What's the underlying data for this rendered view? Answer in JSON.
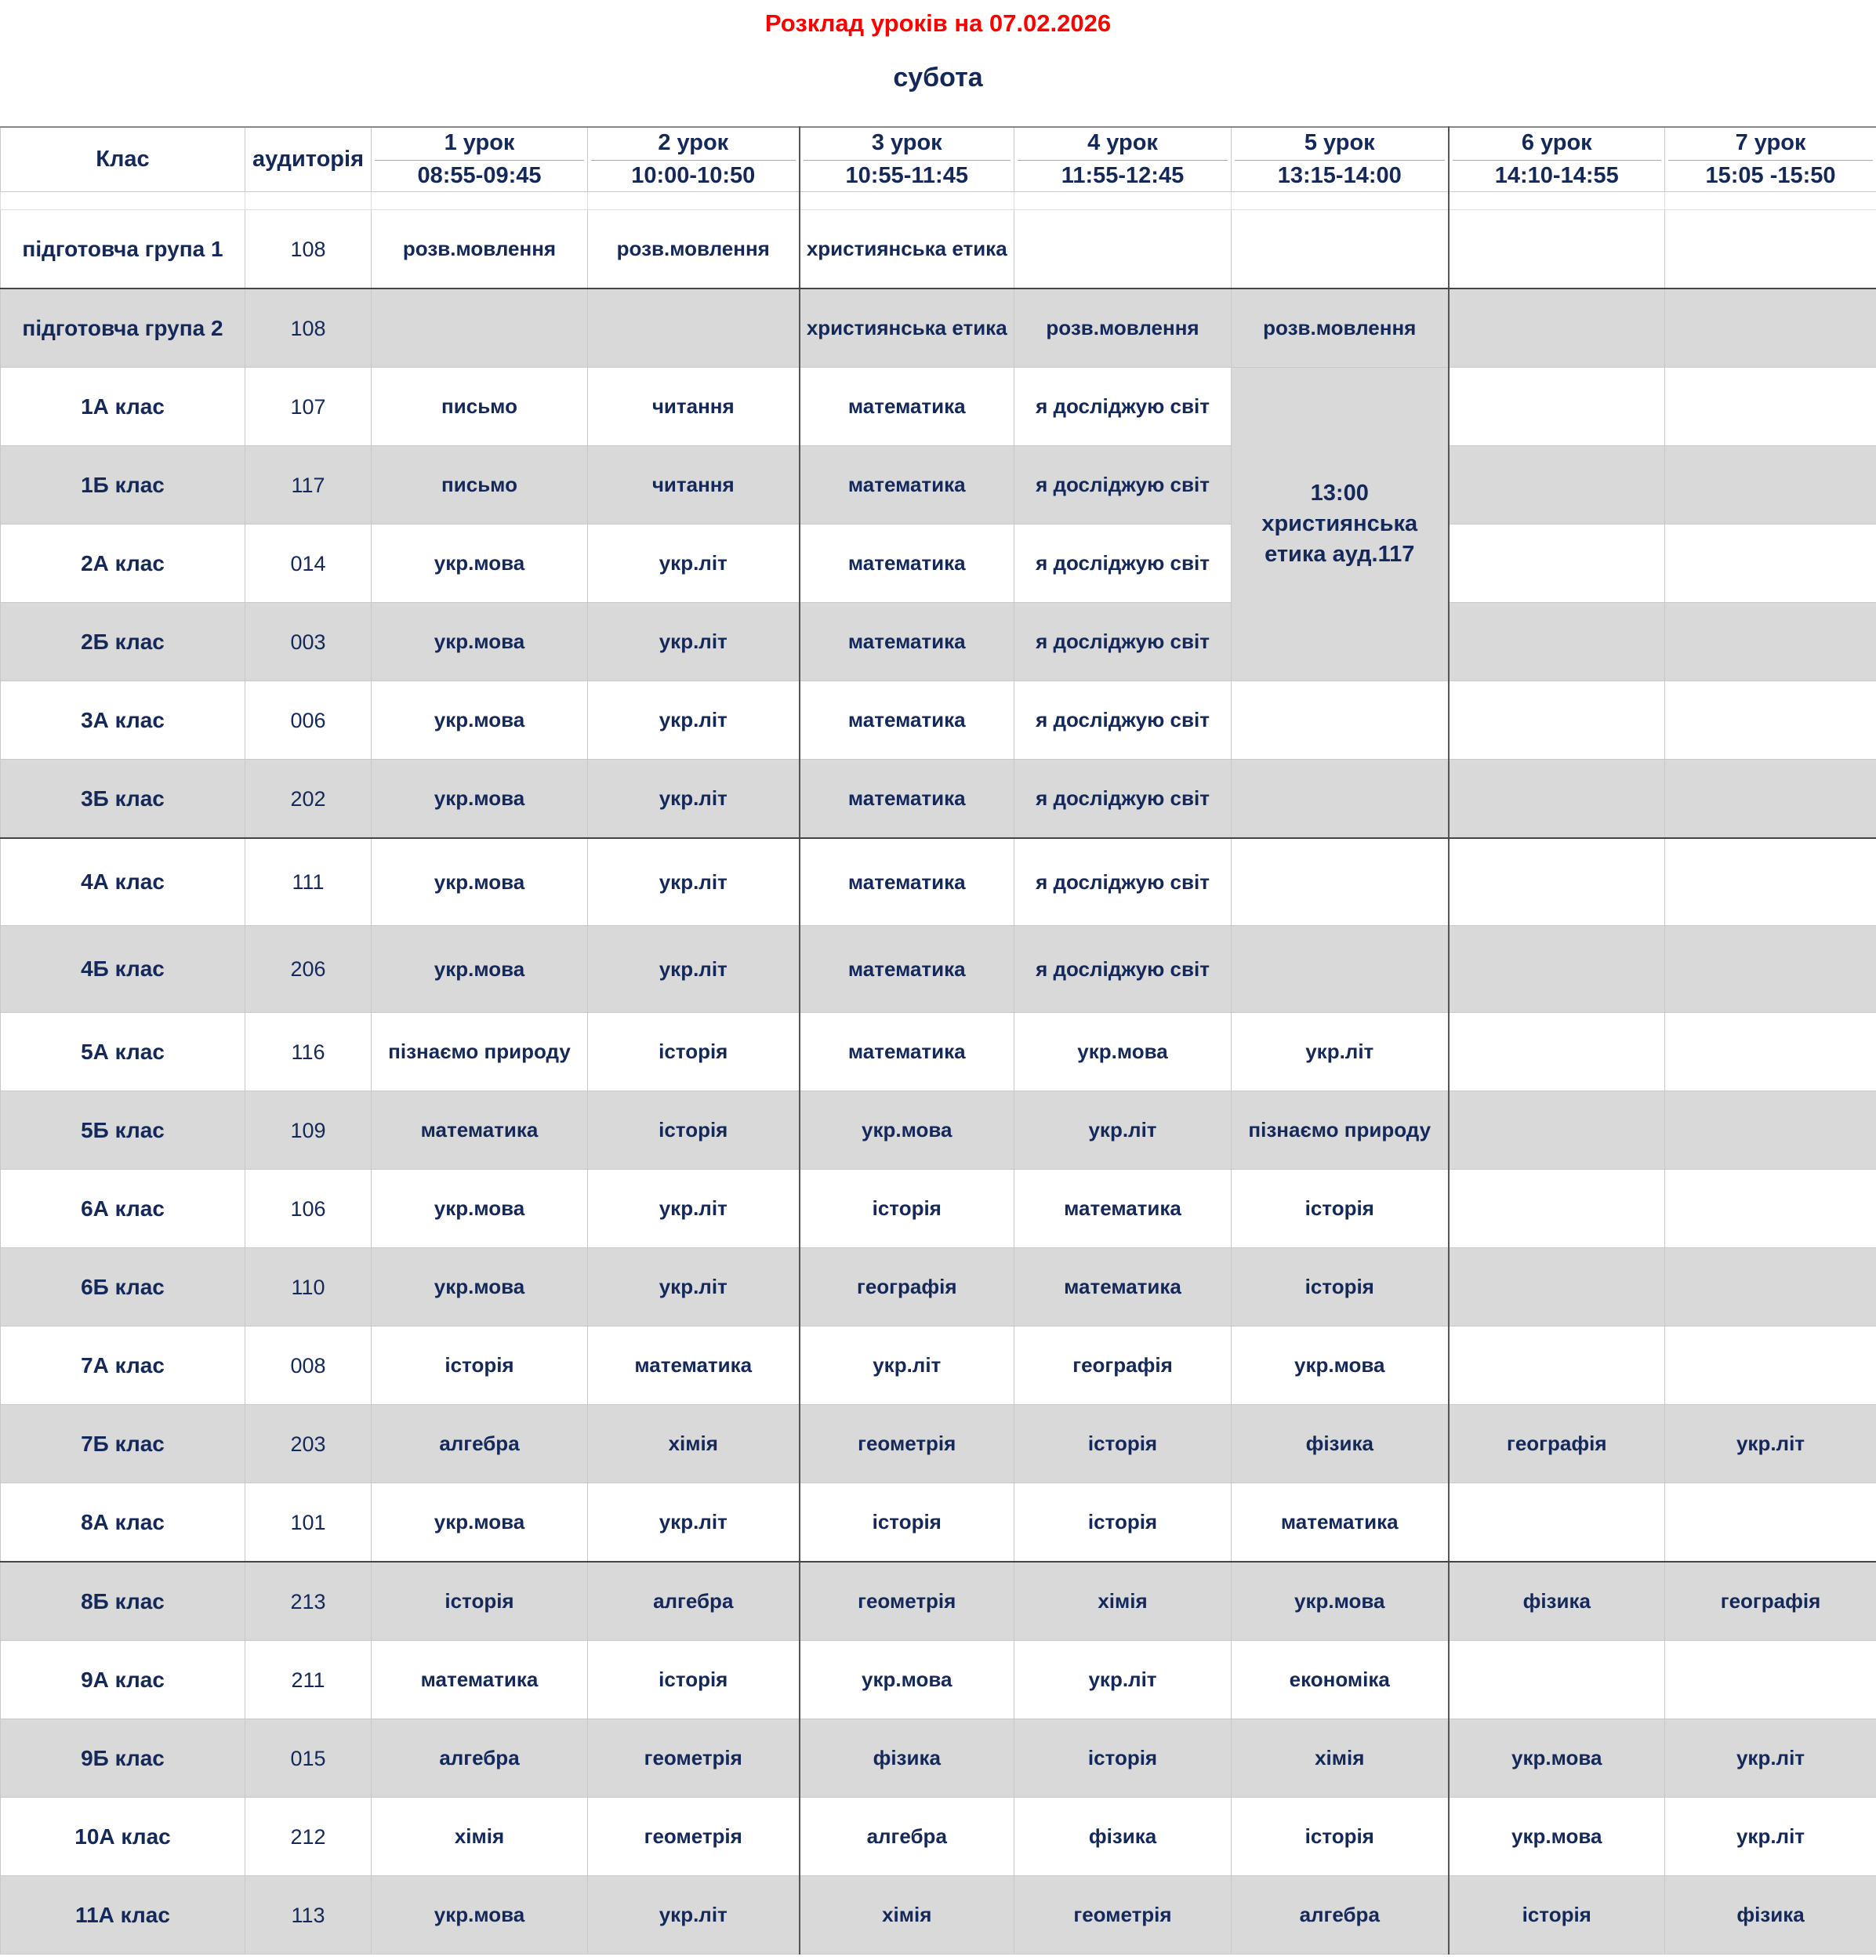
{
  "title": "Розклад уроків на 07.02.2026",
  "day": "субота",
  "headers": {
    "class": "Клас",
    "room": "аудиторія",
    "lessons": [
      {
        "n": "1 урок",
        "t": "08:55-09:45"
      },
      {
        "n": "2 урок",
        "t": "10:00-10:50"
      },
      {
        "n": "3 урок",
        "t": "10:55-11:45"
      },
      {
        "n": "4 урок",
        "t": "11:55-12:45"
      },
      {
        "n": "5 урок",
        "t": "13:15-14:00"
      },
      {
        "n": "6 урок",
        "t": "14:10-14:55"
      },
      {
        "n": "7 урок",
        "t": "15:05 -15:50"
      }
    ]
  },
  "merged_note": "13:00 християнська етика ауд.117",
  "rows": [
    {
      "cls": "підготовча група 1",
      "room": "108",
      "l": [
        "розв.мовлення",
        "розв.мовлення",
        "християнська етика",
        "",
        "",
        "",
        ""
      ]
    },
    {
      "cls": "підготовча група 2",
      "room": "108",
      "l": [
        "",
        "",
        "християнська етика",
        "розв.мовлення",
        "розв.мовлення",
        "",
        ""
      ]
    },
    {
      "cls": "1А клас",
      "room": "107",
      "l": [
        "письмо",
        "читання",
        "математика",
        "я досліджую світ",
        null,
        "",
        ""
      ]
    },
    {
      "cls": "1Б клас",
      "room": "117",
      "l": [
        "письмо",
        "читання",
        "математика",
        "я досліджую світ",
        null,
        "",
        ""
      ]
    },
    {
      "cls": "2А клас",
      "room": "014",
      "l": [
        "укр.мова",
        "укр.літ",
        "математика",
        "я досліджую світ",
        null,
        "",
        ""
      ]
    },
    {
      "cls": "2Б клас",
      "room": "003",
      "l": [
        "укр.мова",
        "укр.літ",
        "математика",
        "я досліджую світ",
        null,
        "",
        ""
      ]
    },
    {
      "cls": "3А клас",
      "room": "006",
      "l": [
        "укр.мова",
        "укр.літ",
        "математика",
        "я досліджую світ",
        "",
        "",
        ""
      ]
    },
    {
      "cls": "3Б клас",
      "room": "202",
      "l": [
        "укр.мова",
        "укр.літ",
        "математика",
        "я досліджую світ",
        "",
        "",
        ""
      ]
    },
    {
      "cls": "4А клас",
      "room": "111",
      "l": [
        "укр.мова",
        "укр.літ",
        "математика",
        "я досліджую світ",
        "",
        "",
        ""
      ]
    },
    {
      "cls": "4Б клас",
      "room": "206",
      "l": [
        "укр.мова",
        "укр.літ",
        "математика",
        "я досліджую світ",
        "",
        "",
        ""
      ]
    },
    {
      "cls": "5А клас",
      "room": "116",
      "l": [
        "пізнаємо природу",
        "історія",
        "математика",
        "укр.мова",
        "укр.літ",
        "",
        ""
      ]
    },
    {
      "cls": "5Б клас",
      "room": "109",
      "l": [
        "математика",
        "історія",
        "укр.мова",
        "укр.літ",
        "пізнаємо природу",
        "",
        ""
      ]
    },
    {
      "cls": "6А клас",
      "room": "106",
      "l": [
        "укр.мова",
        "укр.літ",
        "історія",
        "математика",
        "історія",
        "",
        ""
      ]
    },
    {
      "cls": "6Б клас",
      "room": "110",
      "l": [
        "укр.мова",
        "укр.літ",
        "географія",
        "математика",
        "історія",
        "",
        ""
      ]
    },
    {
      "cls": "7А клас",
      "room": "008",
      "l": [
        "історія",
        "математика",
        "укр.літ",
        "географія",
        "укр.мова",
        "",
        ""
      ]
    },
    {
      "cls": "7Б клас",
      "room": "203",
      "l": [
        "алгебра",
        "хімія",
        "геометрія",
        "історія",
        "фізика",
        "географія",
        "укр.літ"
      ]
    },
    {
      "cls": "8А клас",
      "room": "101",
      "l": [
        "укр.мова",
        "укр.літ",
        "історія",
        "історія",
        "математика",
        "",
        ""
      ]
    },
    {
      "cls": "8Б клас",
      "room": "213",
      "l": [
        "історія",
        "алгебра",
        "геометрія",
        "хімія",
        "укр.мова",
        "фізика",
        "географія"
      ]
    },
    {
      "cls": "9А клас",
      "room": "211",
      "l": [
        "математика",
        "історія",
        "укр.мова",
        "укр.літ",
        "економіка",
        "",
        ""
      ]
    },
    {
      "cls": "9Б клас",
      "room": "015",
      "l": [
        "алгебра",
        "геометрія",
        "фізика",
        "історія",
        "хімія",
        "укр.мова",
        "укр.літ"
      ]
    },
    {
      "cls": "10А клас",
      "room": "212",
      "l": [
        "хімія",
        "геометрія",
        "алгебра",
        "фізика",
        "історія",
        "укр.мова",
        "укр.літ"
      ]
    },
    {
      "cls": "11А клас",
      "room": "113",
      "l": [
        "укр.мова",
        "укр.літ",
        "хімія",
        "геометрія",
        "алгебра",
        "історія",
        "фізика"
      ]
    }
  ]
}
